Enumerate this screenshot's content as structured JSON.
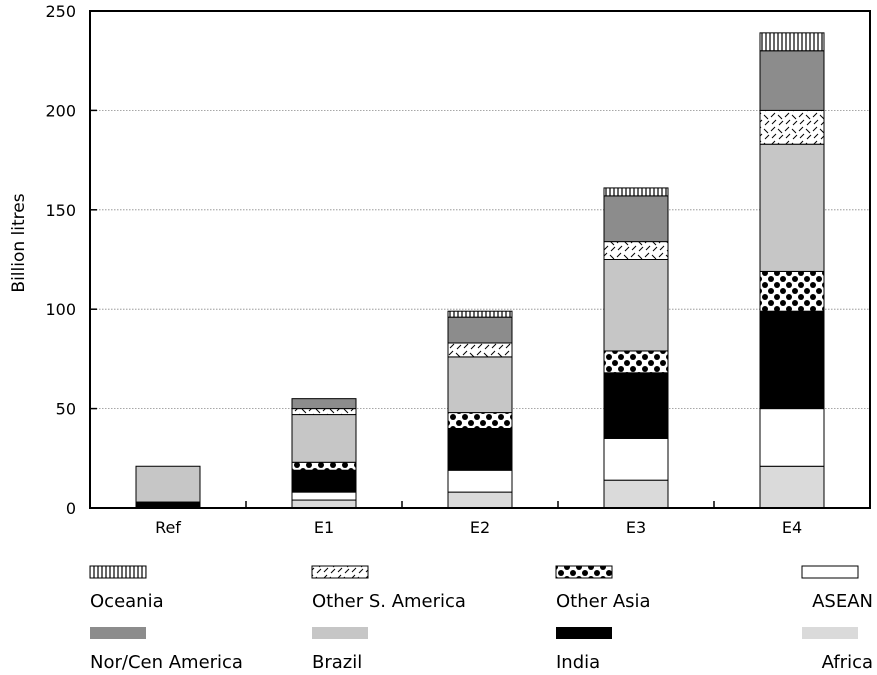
{
  "chart_data": {
    "type": "bar",
    "stacked": true,
    "title": "",
    "xlabel": "",
    "ylabel": "Billion litres",
    "ylim": [
      0,
      250
    ],
    "yticks": [
      0,
      50,
      100,
      150,
      200,
      250
    ],
    "grid": "horizontal dotted",
    "legend_position": "bottom",
    "categories": [
      "Ref",
      "E1",
      "E2",
      "E3",
      "E4"
    ],
    "series": [
      {
        "name": "Africa",
        "pattern": "solid-light",
        "color": "#dadada",
        "values": [
          0,
          4,
          8,
          14,
          21
        ]
      },
      {
        "name": "ASEAN",
        "pattern": "solid-white",
        "color": "#ffffff",
        "values": [
          0,
          4,
          11,
          21,
          29
        ]
      },
      {
        "name": "India",
        "pattern": "solid-black",
        "color": "#000000",
        "values": [
          3,
          11,
          21,
          33,
          49
        ]
      },
      {
        "name": "Other Asia",
        "pattern": "dots",
        "color": "#000000",
        "values": [
          0,
          4,
          8,
          11,
          20
        ]
      },
      {
        "name": "Brazil",
        "pattern": "solid-light",
        "color": "#c6c6c6",
        "values": [
          18,
          24,
          28,
          46,
          64
        ]
      },
      {
        "name": "Other S. America",
        "pattern": "dashes",
        "color": "#000000",
        "values": [
          0,
          3,
          7,
          9,
          17
        ]
      },
      {
        "name": "Nor/Cen America",
        "pattern": "solid-dark",
        "color": "#8c8c8c",
        "values": [
          0,
          5,
          13,
          23,
          30
        ]
      },
      {
        "name": "Oceania",
        "pattern": "vertical-lines",
        "color": "#000000",
        "values": [
          0,
          0,
          3,
          4,
          9
        ]
      }
    ],
    "legend_order": [
      "Oceania",
      "Other S. America",
      "Other Asia",
      "ASEAN",
      "Nor/Cen America",
      "Brazil",
      "India",
      "Africa"
    ]
  }
}
